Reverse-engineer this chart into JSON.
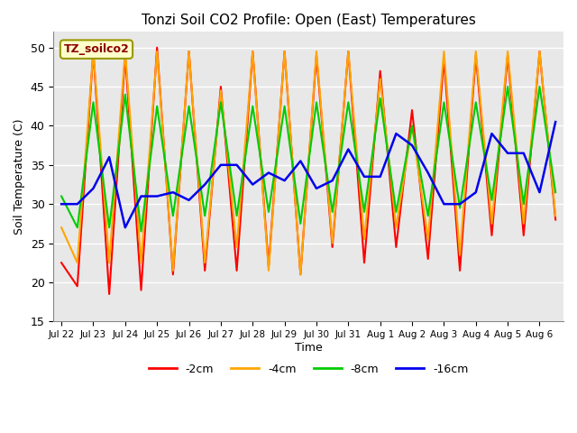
{
  "title": "Tonzi Soil CO2 Profile: Open (East) Temperatures",
  "xlabel": "Time",
  "ylabel": "Soil Temperature (C)",
  "ylim": [
    15,
    52
  ],
  "yticks": [
    15,
    20,
    25,
    30,
    35,
    40,
    45,
    50
  ],
  "legend_label": "TZ_soilco2",
  "legend_entries": [
    "-2cm",
    "-4cm",
    "-8cm",
    "-16cm"
  ],
  "colors": {
    "m2cm": "#FF0000",
    "m4cm": "#FFA500",
    "m8cm": "#00CC00",
    "m16cm": "#0000EE"
  },
  "plot_bg": "#E8E8E8",
  "xtick_labels": [
    "Jul 22",
    "Jul 23",
    "Jul 24",
    "Jul 25",
    "Jul 26",
    "Jul 27",
    "Jul 28",
    "Jul 29",
    "Jul 30",
    "Jul 31",
    "Aug 1",
    "Aug 2",
    "Aug 3",
    "Aug 4",
    "Aug 5",
    "Aug 6"
  ],
  "m2cm": [
    22.5,
    19.5,
    49.5,
    18.5,
    49.0,
    19.0,
    50.0,
    21.0,
    49.5,
    21.5,
    45.0,
    21.5,
    49.5,
    22.0,
    49.5,
    21.0,
    49.0,
    24.5,
    49.5,
    22.5,
    47.0,
    24.5,
    42.0,
    23.0,
    48.5,
    21.5,
    49.0,
    26.0,
    49.0,
    26.0,
    49.5,
    28.0
  ],
  "m4cm": [
    27.0,
    22.5,
    49.5,
    22.5,
    49.5,
    22.5,
    49.5,
    21.5,
    49.5,
    22.5,
    44.5,
    24.5,
    49.5,
    21.5,
    49.5,
    21.0,
    49.5,
    25.0,
    49.5,
    25.5,
    46.0,
    27.0,
    40.0,
    25.5,
    49.5,
    23.5,
    49.5,
    27.5,
    49.5,
    27.5,
    49.5,
    28.5
  ],
  "m8cm": [
    31.0,
    27.0,
    43.0,
    27.0,
    44.0,
    26.5,
    42.5,
    28.5,
    42.5,
    28.5,
    43.0,
    28.5,
    42.5,
    29.0,
    42.5,
    27.5,
    43.0,
    29.0,
    43.0,
    29.0,
    43.5,
    29.0,
    40.0,
    28.5,
    43.0,
    29.5,
    43.0,
    30.5,
    45.0,
    30.0,
    45.0,
    31.5
  ],
  "m16cm": [
    30.0,
    30.0,
    32.0,
    36.0,
    27.0,
    31.0,
    31.0,
    31.5,
    30.5,
    32.5,
    35.0,
    35.0,
    32.5,
    34.0,
    33.0,
    35.5,
    32.0,
    33.0,
    37.0,
    33.5,
    33.5,
    39.0,
    37.5,
    34.0,
    30.0,
    30.0,
    31.5,
    39.0,
    36.5,
    36.5,
    31.5,
    40.5
  ]
}
